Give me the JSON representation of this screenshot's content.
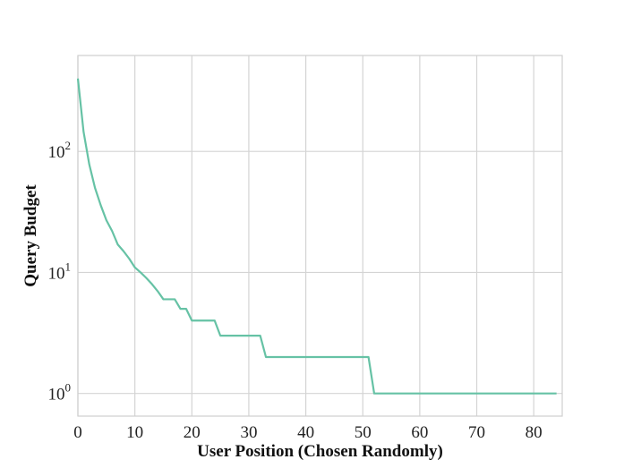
{
  "chart_data": {
    "type": "line",
    "title": "",
    "xlabel": "User Position (Chosen Randomly)",
    "ylabel": "Query Budget",
    "xlim": [
      0,
      85
    ],
    "ylim": [
      0.65,
      620
    ],
    "yscale": "log",
    "grid": true,
    "x_ticks": [
      0,
      10,
      20,
      30,
      40,
      50,
      60,
      70,
      80
    ],
    "y_ticks": [
      {
        "value": 1,
        "base": "10",
        "exp": "0"
      },
      {
        "value": 10,
        "base": "10",
        "exp": "1"
      },
      {
        "value": 100,
        "base": "10",
        "exp": "2"
      }
    ],
    "series": [
      {
        "color": "#66c2a5",
        "x": [
          0,
          1,
          2,
          3,
          4,
          5,
          6,
          7,
          8,
          9,
          10,
          11,
          12,
          13,
          14,
          15,
          16,
          17,
          18,
          19,
          20,
          21,
          22,
          23,
          24,
          25,
          26,
          27,
          28,
          29,
          30,
          31,
          32,
          33,
          34,
          35,
          40,
          45,
          50,
          51,
          52,
          60,
          70,
          80,
          84
        ],
        "y": [
          400,
          145,
          78,
          50,
          36,
          27,
          22,
          17,
          15,
          13,
          11,
          10,
          9,
          8,
          7,
          6,
          6,
          6,
          5,
          5,
          4,
          4,
          4,
          4,
          4,
          3,
          3,
          3,
          3,
          3,
          3,
          3,
          3,
          2,
          2,
          2,
          2,
          2,
          2,
          2,
          1,
          1,
          1,
          1,
          1
        ]
      }
    ]
  }
}
